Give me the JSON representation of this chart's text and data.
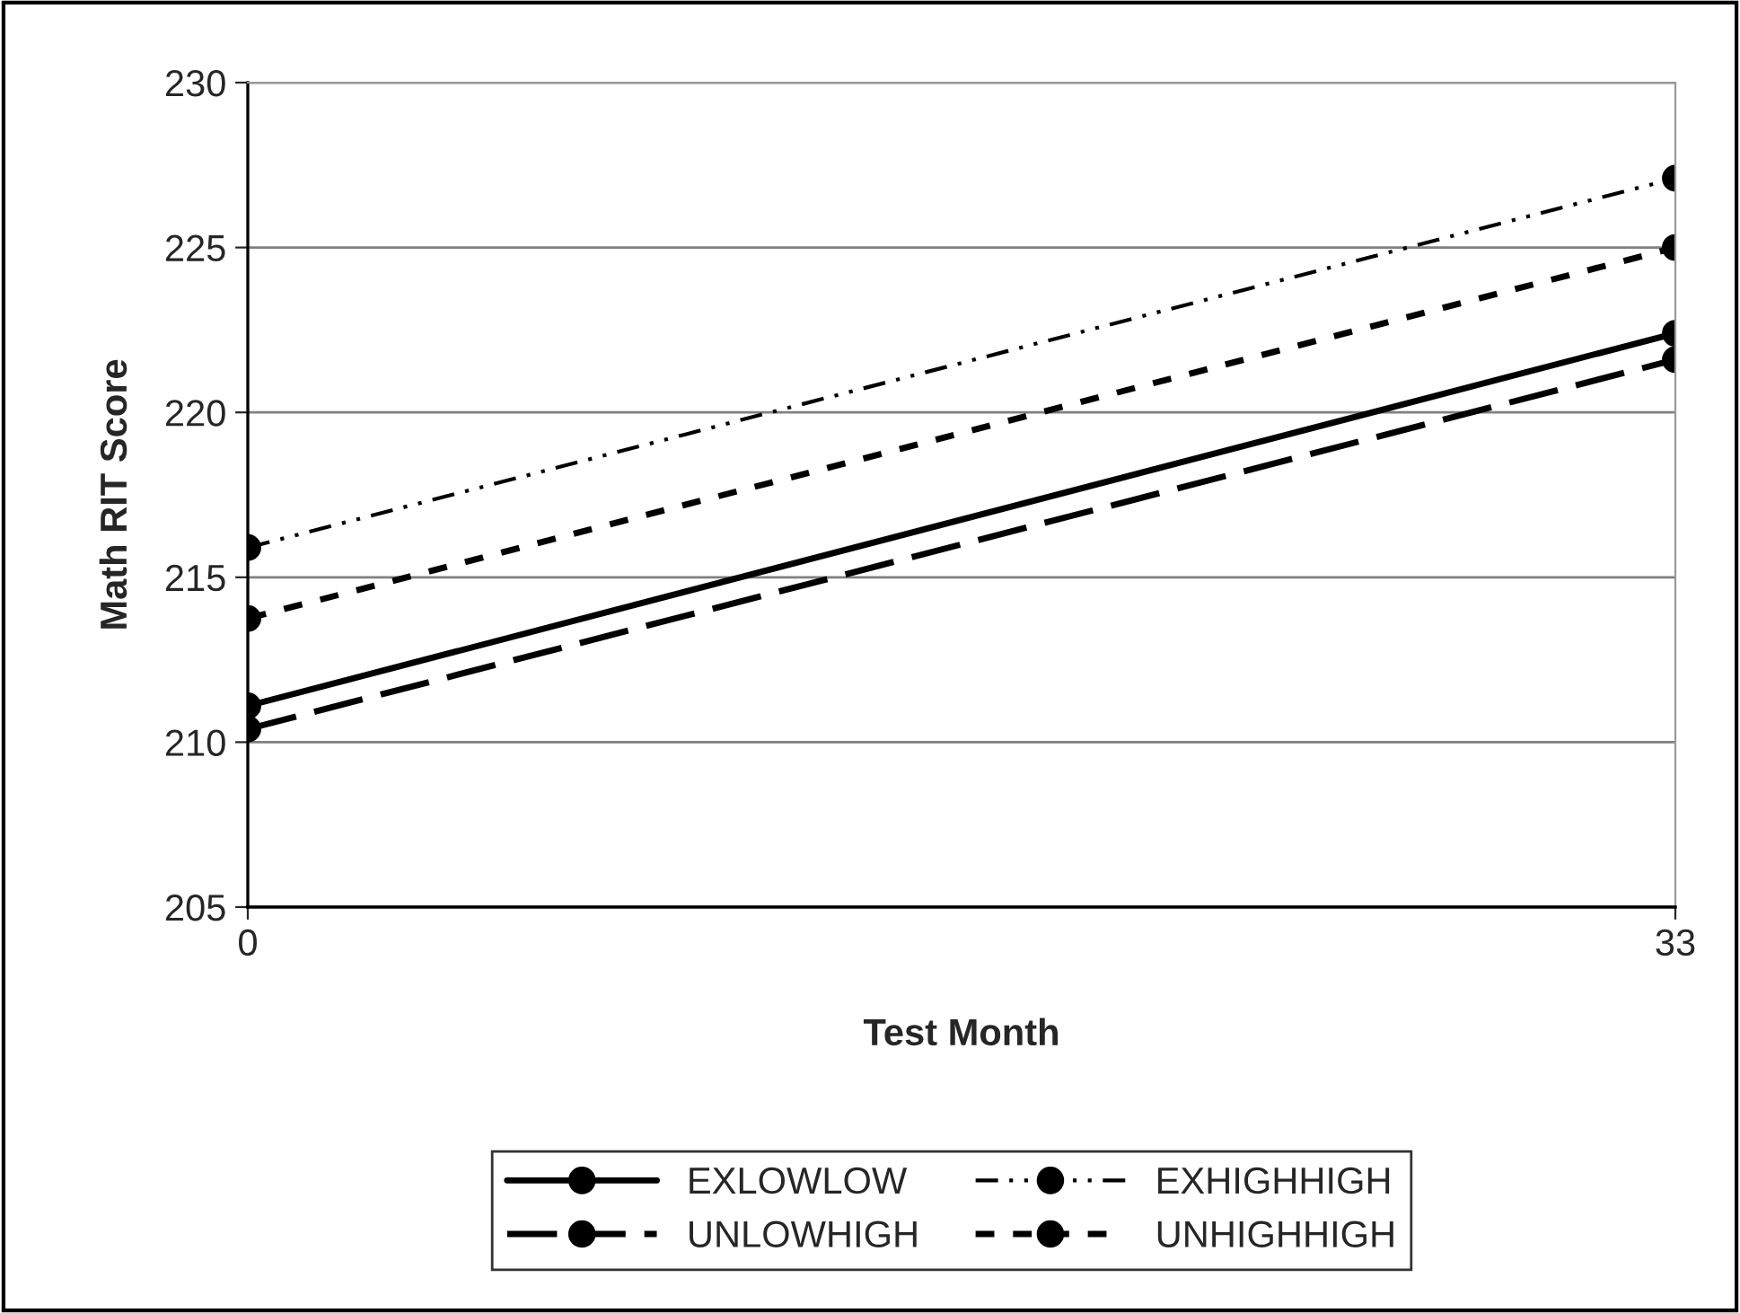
{
  "chart_data": {
    "type": "line",
    "xlabel": "Test Month",
    "ylabel": "Math RIT Score",
    "x": [
      0,
      33
    ],
    "series": [
      {
        "name": "EXLOWLOW",
        "color": "#000000",
        "line_style": "solid",
        "values": [
          211.1,
          222.4
        ]
      },
      {
        "name": "UNLOWHIGH",
        "color": "#000000",
        "line_style": "dashed",
        "values": [
          210.4,
          221.6
        ]
      },
      {
        "name": "EXHIGHHIGH",
        "color": "#000000",
        "line_style": "dashdot",
        "values": [
          215.9,
          227.1
        ]
      },
      {
        "name": "UNHIGHHIGH",
        "color": "#000000",
        "line_style": "dotted",
        "values": [
          213.75,
          225.0
        ]
      }
    ],
    "xlim": [
      0,
      33
    ],
    "xticks": [
      0,
      33
    ],
    "ylim": [
      205,
      230
    ],
    "yticks": [
      205,
      210,
      215,
      220,
      225,
      230
    ],
    "grid": "y",
    "legend": "bottom",
    "marker": "circle"
  }
}
